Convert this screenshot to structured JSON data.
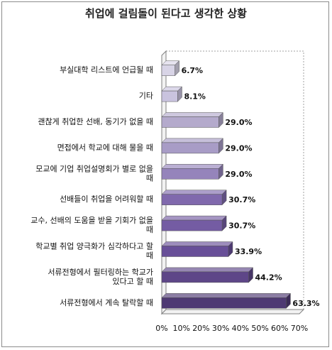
{
  "chart_data": {
    "type": "bar",
    "orientation": "horizontal",
    "title": "취업에 걸림돌이 된다고 생각한 상황",
    "xlim": [
      0,
      70
    ],
    "ticks": [
      "0%",
      "10%",
      "20%",
      "30%",
      "40%",
      "50%",
      "60%",
      "70%"
    ],
    "grid": false,
    "legend": "none",
    "categories": [
      [
        "부실대학 리스트에 언급될 때"
      ],
      [
        "기타"
      ],
      [
        "괜찮게 취업한 선배, 동기가 없을 때"
      ],
      [
        "면접에서 학교에 대해 물을 때"
      ],
      [
        "모교에 기업 취업설명회가 별로 없을",
        "때"
      ],
      [
        "선배들이 취업을 어려워할 때"
      ],
      [
        "교수, 선배의 도움을 받을 기회가 없을",
        "때"
      ],
      [
        "학교별 취업 양극화가 심각하다고 할",
        "때"
      ],
      [
        "서류전형에서 필터링하는 학교가",
        "있다고 할 때"
      ],
      [
        "서류전형에서 계속 탈락할 때"
      ]
    ],
    "values": [
      6.7,
      8.1,
      29.0,
      29.0,
      29.0,
      30.7,
      30.7,
      33.9,
      44.2,
      63.3
    ],
    "value_labels": [
      "6.7%",
      "8.1%",
      "29.0%",
      "29.0%",
      "29.0%",
      "30.7%",
      "30.7%",
      "33.9%",
      "44.2%",
      "63.3%"
    ],
    "colors": [
      "#d8d4e6",
      "#c9c3de",
      "#b4aacc",
      "#a89cc6",
      "#9584bb",
      "#8069ad",
      "#745ca3",
      "#684f98",
      "#5e4688",
      "#4e3973"
    ]
  }
}
